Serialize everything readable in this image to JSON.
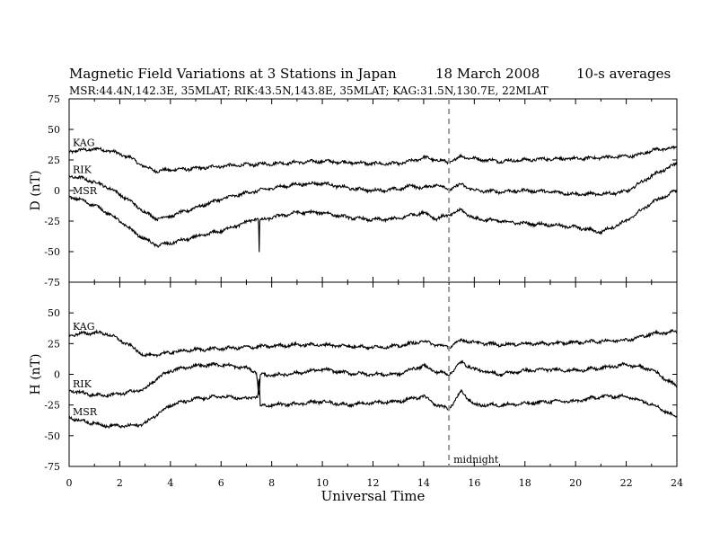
{
  "header": {
    "title": "Magnetic Field Variations at 3 Stations in Japan",
    "date": "18  March   2008",
    "averaging": "10-s averages",
    "stations_line": "MSR:44.4N,142.3E, 35MLAT;  RIK:43.5N,143.8E, 35MLAT;  KAG:31.5N,130.7E, 22MLAT"
  },
  "chart_data": [
    {
      "type": "line",
      "panel": "top",
      "ylabel": "D (nT)",
      "ylim": [
        -75,
        75
      ],
      "yticks": [
        "75",
        "50",
        "25",
        "0",
        "-25",
        "-50",
        "-75"
      ],
      "xlim": [
        0,
        24
      ],
      "series": [
        {
          "name": "KAG",
          "x": [
            0,
            0.5,
            1,
            1.5,
            2,
            2.5,
            3,
            3.5,
            4,
            5,
            6,
            7,
            8,
            9,
            10,
            11,
            12,
            13,
            13.5,
            14,
            14.5,
            15,
            15.5,
            16,
            17,
            18,
            19,
            20,
            21,
            22,
            22.5,
            23,
            24
          ],
          "y": [
            32,
            33,
            34,
            33,
            30,
            26,
            19,
            16,
            17,
            18,
            20,
            21,
            22,
            23,
            24,
            23,
            22,
            22,
            24,
            27,
            25,
            23,
            28,
            26,
            24,
            25,
            26,
            26,
            27,
            28,
            29,
            33,
            35
          ]
        },
        {
          "name": "RIK",
          "x": [
            0,
            0.5,
            1,
            1.5,
            2,
            2.5,
            3,
            3.5,
            4,
            5,
            6,
            7,
            8,
            9,
            10,
            11,
            12,
            13,
            13.5,
            14,
            14.5,
            15,
            15.5,
            16,
            17,
            18,
            19,
            20,
            21,
            22,
            23,
            24
          ],
          "y": [
            12,
            10,
            7,
            3,
            -3,
            -10,
            -18,
            -23,
            -21,
            -14,
            -7,
            -2,
            2,
            5,
            6,
            2,
            0,
            1,
            4,
            2,
            5,
            1,
            5,
            0,
            -1,
            0,
            -1,
            -3,
            -3,
            -1,
            12,
            22
          ]
        },
        {
          "name": "MSR",
          "x": [
            0,
            0.5,
            1,
            1.5,
            2,
            2.5,
            3,
            3.5,
            4,
            5,
            6,
            7,
            7.48,
            7.5,
            7.52,
            8,
            9,
            10,
            11,
            12,
            13,
            13.5,
            14,
            14.5,
            15,
            15.5,
            16,
            17,
            18,
            19,
            20,
            21,
            22,
            23,
            24
          ],
          "y": [
            -5,
            -8,
            -12,
            -18,
            -25,
            -33,
            -40,
            -45,
            -43,
            -38,
            -33,
            -26,
            -22,
            -60,
            -25,
            -22,
            -18,
            -18,
            -22,
            -24,
            -23,
            -20,
            -18,
            -23,
            -20,
            -16,
            -23,
            -25,
            -27,
            -28,
            -30,
            -34,
            -25,
            -10,
            0
          ]
        }
      ]
    },
    {
      "type": "line",
      "panel": "bottom",
      "ylabel": "H (nT)",
      "ylim": [
        -75,
        75
      ],
      "yticks": [
        "50",
        "25",
        "0",
        "-25",
        "-50",
        "-75"
      ],
      "xlim": [
        0,
        24
      ],
      "xlabel": "Universal Time",
      "xticks": [
        "0",
        "2",
        "4",
        "6",
        "8",
        "10",
        "12",
        "14",
        "16",
        "18",
        "20",
        "22",
        "24"
      ],
      "annotation": {
        "x": 15,
        "label": "midnight"
      },
      "series": [
        {
          "name": "KAG",
          "x": [
            0,
            0.5,
            1,
            1.5,
            2,
            2.5,
            3,
            3.5,
            4,
            5,
            6,
            7,
            8,
            9,
            10,
            11,
            12,
            13,
            13.5,
            14,
            14.5,
            15,
            15.5,
            16,
            17,
            18,
            19,
            20,
            21,
            22,
            22.5,
            23,
            24
          ],
          "y": [
            32,
            33,
            34,
            33,
            28,
            22,
            15,
            16,
            18,
            20,
            21,
            22,
            23,
            24,
            24,
            23,
            22,
            23,
            25,
            27,
            24,
            22,
            28,
            26,
            24,
            25,
            25,
            26,
            27,
            28,
            30,
            33,
            35
          ]
        },
        {
          "name": "RIK",
          "x": [
            0,
            0.5,
            1,
            1.5,
            2,
            2.5,
            3,
            3.5,
            4,
            5,
            6,
            7,
            7.4,
            7.5,
            7.55,
            8,
            9,
            10,
            11,
            12,
            13,
            13.5,
            14,
            14.5,
            15,
            15.5,
            16,
            17,
            18,
            19,
            20,
            21,
            22,
            23,
            24
          ],
          "y": [
            -13,
            -15,
            -17,
            -17,
            -16,
            -14,
            -12,
            -3,
            3,
            7,
            8,
            5,
            2,
            -20,
            0,
            -1,
            1,
            4,
            1,
            0,
            0,
            4,
            7,
            2,
            0,
            10,
            4,
            0,
            3,
            4,
            3,
            5,
            8,
            4,
            -10
          ]
        },
        {
          "name": "MSR",
          "x": [
            0,
            0.5,
            1,
            1.5,
            2,
            2.5,
            3,
            3.5,
            4,
            5,
            6,
            7,
            7.45,
            7.5,
            7.55,
            8,
            9,
            10,
            11,
            12,
            13,
            13.5,
            14,
            14.5,
            15,
            15.5,
            16,
            17,
            18,
            19,
            20,
            21,
            22,
            23,
            24
          ],
          "y": [
            -35,
            -38,
            -40,
            -42,
            -42,
            -42,
            -40,
            -32,
            -25,
            -20,
            -18,
            -20,
            -18,
            -2,
            -26,
            -25,
            -24,
            -22,
            -25,
            -23,
            -22,
            -20,
            -18,
            -25,
            -28,
            -14,
            -25,
            -25,
            -24,
            -22,
            -22,
            -18,
            -18,
            -24,
            -35
          ]
        }
      ]
    }
  ]
}
